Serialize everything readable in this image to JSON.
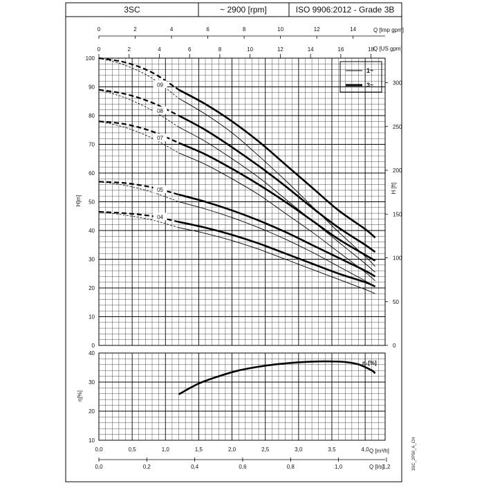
{
  "header": {
    "model": "3SC",
    "speed": "~ 2900 [rpm]",
    "standard": "ISO 9906:2012 - Grade 3B"
  },
  "colors": {
    "line": "#000000",
    "grid": "#000000",
    "background": "#ffffff"
  },
  "side_label": "3SC_2P50_A_CH",
  "chart_data": [
    {
      "type": "line",
      "name": "head-curves",
      "xlabel": "Q [m³/h]",
      "ylabel": "H[m]",
      "y2label": "H [ft]",
      "x_top_labels": [
        "Q [Imp gpm]",
        "Q [US gpm]"
      ],
      "xlim": [
        0,
        4.3
      ],
      "ylim": [
        0,
        100
      ],
      "grid": true,
      "legend": {
        "placement": "top-right",
        "entries": [
          {
            "label": "1~",
            "style": "thin"
          },
          {
            "label": "3~",
            "style": "thick"
          }
        ]
      },
      "axes": {
        "imp_gpm_ticks": [
          "0",
          "2",
          "4",
          "6",
          "8",
          "10",
          "12",
          "14"
        ],
        "us_gpm_ticks": [
          "0",
          "2",
          "4",
          "6",
          "8",
          "10",
          "12",
          "14",
          "16",
          "18"
        ],
        "h_m_ticks": [
          "0",
          "10",
          "20",
          "30",
          "40",
          "50",
          "60",
          "70",
          "80",
          "90",
          "100"
        ],
        "h_ft_ticks": [
          "0",
          "50",
          "100",
          "150",
          "200",
          "250",
          "300"
        ]
      },
      "curve_labels": [
        "09",
        "08",
        "07",
        "05",
        "04"
      ],
      "curves": [
        {
          "label": "09",
          "thick": [
            [
              1.2,
              89
            ],
            [
              1.6,
              84
            ],
            [
              2.0,
              78
            ],
            [
              2.4,
              71
            ],
            [
              2.8,
              63
            ],
            [
              3.2,
              55
            ],
            [
              3.6,
              47
            ],
            [
              4.0,
              40.5
            ],
            [
              4.15,
              37.5
            ]
          ],
          "thin": [
            [
              1.2,
              86
            ],
            [
              1.6,
              80.5
            ],
            [
              2.0,
              74
            ],
            [
              2.4,
              66
            ],
            [
              2.8,
              57.5
            ],
            [
              3.2,
              48.5
            ],
            [
              3.6,
              39.5
            ],
            [
              4.0,
              31
            ],
            [
              4.15,
              27.5
            ]
          ],
          "extrapolation": [
            [
              0,
              100
            ],
            [
              0.4,
              98.5
            ],
            [
              0.8,
              95
            ],
            [
              1.2,
              89
            ]
          ]
        },
        {
          "label": "08",
          "thick": [
            [
              1.2,
              80
            ],
            [
              1.6,
              75
            ],
            [
              2.0,
              69
            ],
            [
              2.4,
              62.5
            ],
            [
              2.8,
              55.5
            ],
            [
              3.2,
              48
            ],
            [
              3.6,
              41
            ],
            [
              4.0,
              35
            ],
            [
              4.15,
              32.5
            ]
          ],
          "thin": [
            [
              1.2,
              76
            ],
            [
              1.6,
              71
            ],
            [
              2.0,
              65
            ],
            [
              2.4,
              58.5
            ],
            [
              2.8,
              51
            ],
            [
              3.2,
              43.5
            ],
            [
              3.6,
              36
            ],
            [
              4.0,
              28.5
            ],
            [
              4.15,
              25.5
            ]
          ],
          "extrapolation": [
            [
              0,
              89
            ],
            [
              0.4,
              87.5
            ],
            [
              0.8,
              84.5
            ],
            [
              1.2,
              80
            ]
          ]
        },
        {
          "label": "07",
          "thick": [
            [
              1.2,
              70.5
            ],
            [
              1.6,
              66.5
            ],
            [
              2.0,
              61.5
            ],
            [
              2.4,
              56
            ],
            [
              2.8,
              50
            ],
            [
              3.2,
              43.5
            ],
            [
              3.6,
              37
            ],
            [
              4.0,
              31.5
            ],
            [
              4.15,
              29.5
            ]
          ],
          "thin": [
            [
              1.2,
              67
            ],
            [
              1.6,
              63
            ],
            [
              2.0,
              58
            ],
            [
              2.4,
              52.5
            ],
            [
              2.8,
              46
            ],
            [
              3.2,
              39.5
            ],
            [
              3.6,
              32.5
            ],
            [
              4.0,
              25.5
            ],
            [
              4.15,
              22.5
            ]
          ],
          "extrapolation": [
            [
              0,
              78
            ],
            [
              0.4,
              77
            ],
            [
              0.8,
              74.5
            ],
            [
              1.2,
              70.5
            ]
          ]
        },
        {
          "label": "05",
          "thick": [
            [
              1.2,
              52.5
            ],
            [
              1.6,
              50
            ],
            [
              2.0,
              47
            ],
            [
              2.4,
              43.5
            ],
            [
              2.8,
              39.5
            ],
            [
              3.2,
              35
            ],
            [
              3.6,
              30.5
            ],
            [
              4.0,
              26
            ],
            [
              4.15,
              24
            ]
          ],
          "thin": [
            [
              1.2,
              50
            ],
            [
              1.6,
              47.5
            ],
            [
              2.0,
              44.5
            ],
            [
              2.4,
              41
            ],
            [
              2.8,
              37
            ],
            [
              3.2,
              32.5
            ],
            [
              3.6,
              27.5
            ],
            [
              4.0,
              22.5
            ],
            [
              4.15,
              20.5
            ]
          ],
          "extrapolation": [
            [
              0,
              57
            ],
            [
              0.4,
              56.5
            ],
            [
              0.8,
              55
            ],
            [
              1.2,
              52.5
            ]
          ]
        },
        {
          "label": "04",
          "thick": [
            [
              1.2,
              43
            ],
            [
              1.6,
              41
            ],
            [
              2.0,
              38.5
            ],
            [
              2.4,
              35.5
            ],
            [
              2.8,
              32
            ],
            [
              3.2,
              28.5
            ],
            [
              3.6,
              25
            ],
            [
              4.0,
              22
            ],
            [
              4.15,
              20.5
            ]
          ],
          "thin": [
            [
              1.2,
              41
            ],
            [
              1.6,
              39
            ],
            [
              2.0,
              36.5
            ],
            [
              2.4,
              33.5
            ],
            [
              2.8,
              30
            ],
            [
              3.2,
              26.5
            ],
            [
              3.6,
              23
            ],
            [
              4.0,
              19.5
            ],
            [
              4.15,
              18
            ]
          ],
          "extrapolation": [
            [
              0,
              46.5
            ],
            [
              0.4,
              46
            ],
            [
              0.8,
              45
            ],
            [
              1.2,
              43
            ]
          ]
        }
      ]
    },
    {
      "type": "line",
      "name": "efficiency",
      "xlabel": "Q [m³/h]",
      "x2label": "Q [l/s]",
      "ylabel": "η[%]",
      "series_label": "η₁[%]",
      "xlim": [
        0,
        4.3
      ],
      "ylim": [
        10,
        40
      ],
      "grid": true,
      "axes": {
        "eta_ticks": [
          "10",
          "20",
          "30",
          "40"
        ],
        "q_m3h_ticks": [
          "0,0",
          "0,5",
          "1,0",
          "1,5",
          "2,0",
          "2,5",
          "3,0",
          "3,5",
          "4,0"
        ],
        "q_ls_ticks": [
          "0,0",
          "0,2",
          "0,4",
          "0,6",
          "0,8",
          "1,0",
          "1,2"
        ]
      },
      "x": [
        1.2,
        1.5,
        1.8,
        2.1,
        2.4,
        2.7,
        3.0,
        3.3,
        3.5,
        3.7,
        3.9,
        4.1,
        4.15
      ],
      "values": [
        25.8,
        29.5,
        32.0,
        34.0,
        35.3,
        36.2,
        36.8,
        37.1,
        37.1,
        36.9,
        36.1,
        34.0,
        33.0
      ]
    }
  ]
}
